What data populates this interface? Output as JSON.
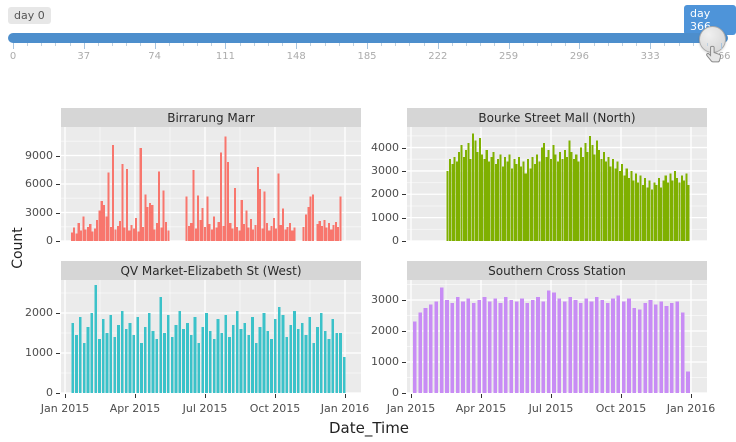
{
  "slider": {
    "left_label": "day 0",
    "right_label": "day 366",
    "tick_labels": [
      "0",
      "37",
      "74",
      "111",
      "148",
      "185",
      "222",
      "259",
      "296",
      "333",
      "366"
    ],
    "track_color": "#4d8ecc",
    "active_badge_color": "#4e94d9",
    "current_value": 366,
    "min": 0,
    "max": 366
  },
  "chart_data": {
    "type": "bar",
    "xlabel": "Date_Time",
    "ylabel": "Count",
    "x_tick_labels": [
      "Jan 2015",
      "Apr 2015",
      "Jul 2015",
      "Oct 2015",
      "Jan 2016"
    ],
    "x_range_days": [
      0,
      366
    ],
    "grid": "on",
    "panels": [
      {
        "title": "Birrarung Marr",
        "color": "#F8766D",
        "ylim": [
          0,
          12000
        ],
        "yticks": [
          0,
          3000,
          6000,
          9000
        ],
        "x_start_day": 9,
        "x_step_days": 3,
        "gap_ratio": 0.1,
        "values": [
          900,
          1400,
          800,
          1900,
          1100,
          2600,
          1200,
          1500,
          1800,
          1000,
          1300,
          2200,
          3200,
          4200,
          3800,
          2600,
          7200,
          1500,
          10100,
          1200,
          1600,
          2100,
          8100,
          1400,
          7600,
          1100,
          1700,
          1300,
          2400,
          1000,
          9800,
          1500,
          4900,
          3600,
          4000,
          3800,
          1200,
          1900,
          7300,
          1400,
          5300,
          2000,
          1100,
          null,
          null,
          null,
          null,
          null,
          null,
          null,
          4700,
          1600,
          1900,
          7500,
          1300,
          4800,
          2200,
          3500,
          1500,
          4700,
          1800,
          1200,
          2600,
          1400,
          2000,
          9300,
          1600,
          11000,
          8300,
          1900,
          1300,
          5600,
          1500,
          1100,
          4300,
          1800,
          3200,
          1400,
          2300,
          1200,
          1700,
          7800,
          5500,
          1300,
          5200,
          1900,
          1100,
          1600,
          2400,
          1300,
          7100,
          1700,
          3400,
          1200,
          1500,
          1900,
          1100,
          1400,
          null,
          null,
          null,
          1500,
          2800,
          3600,
          4700,
          4900,
          null,
          1800,
          2100,
          1600,
          2200,
          1400,
          1900,
          1200,
          1700,
          2000,
          1500,
          4700
        ]
      },
      {
        "title": "Bourke Street Mall (North)",
        "color": "#7FB000",
        "ylim": [
          0,
          4880
        ],
        "yticks": [
          0,
          1000,
          2000,
          3000,
          4000
        ],
        "x_start_day": 48,
        "x_step_days": 3,
        "gap_ratio": 0.12,
        "values": [
          3000,
          3500,
          3300,
          3600,
          3400,
          3800,
          4100,
          3600,
          3900,
          4200,
          3500,
          4600,
          4300,
          3800,
          4400,
          3700,
          3500,
          3900,
          3400,
          3600,
          3800,
          3300,
          3500,
          3700,
          3200,
          3600,
          3400,
          3700,
          3100,
          3500,
          3300,
          3600,
          3200,
          3400,
          2900,
          3500,
          3100,
          3600,
          3300,
          3700,
          3400,
          4000,
          4200,
          3600,
          3900,
          3500,
          4100,
          3700,
          3400,
          3800,
          3500,
          3900,
          3600,
          4300,
          3800,
          3500,
          3700,
          3400,
          4000,
          3600,
          4200,
          3800,
          4500,
          4100,
          3700,
          4300,
          3900,
          3500,
          3800,
          3400,
          3600,
          3200,
          3500,
          3100,
          3400,
          3000,
          3300,
          2800,
          3100,
          2700,
          3000,
          2600,
          2900,
          2500,
          2800,
          2400,
          2700,
          2300,
          2600,
          2200,
          2500,
          2400,
          2700,
          2300,
          2600,
          2800,
          2500,
          2900,
          2600,
          3000,
          2700,
          2500,
          2800,
          2600,
          2900,
          2400
        ]
      },
      {
        "title": "QV Market-Elizabeth St (West)",
        "color": "#3BC2C9",
        "ylim": [
          0,
          2825
        ],
        "yticks": [
          0,
          1000,
          2000
        ],
        "x_start_day": 10,
        "x_step_days": 5,
        "gap_ratio": 0.3,
        "values": [
          1750,
          1450,
          1900,
          1250,
          1650,
          2000,
          2700,
          1350,
          1850,
          1500,
          1950,
          1400,
          1700,
          2050,
          1600,
          1750,
          1450,
          1900,
          1250,
          1650,
          2000,
          1550,
          1350,
          2400,
          1500,
          1950,
          1400,
          1700,
          2050,
          1600,
          1750,
          1450,
          1900,
          1250,
          1650,
          2000,
          1550,
          1350,
          1850,
          1500,
          1950,
          1400,
          1700,
          2050,
          1600,
          1750,
          1450,
          1900,
          1250,
          1650,
          2000,
          1550,
          1350,
          1850,
          2150,
          1950,
          1400,
          1700,
          2050,
          1600,
          1750,
          1450,
          1900,
          1250,
          1650,
          2000,
          1550,
          1350,
          1850,
          1500,
          1500,
          900
        ]
      },
      {
        "title": "Southern Cross Station",
        "color": "#C88CF5",
        "ylim": [
          0,
          3645
        ],
        "yticks": [
          0,
          1000,
          2000,
          3000
        ],
        "x_start_day": 5,
        "x_step_days": 7,
        "gap_ratio": 0.32,
        "values": [
          2300,
          2600,
          2750,
          2850,
          2950,
          3400,
          3000,
          2900,
          3100,
          2950,
          3050,
          2900,
          3000,
          3100,
          2950,
          3050,
          2900,
          3100,
          3000,
          2950,
          3050,
          2900,
          3000,
          3100,
          2950,
          3300,
          3250,
          3050,
          2950,
          3100,
          3000,
          2900,
          3050,
          2950,
          3100,
          3000,
          2900,
          3050,
          3150,
          2950,
          3050,
          2750,
          2700,
          2900,
          3000,
          2850,
          2950,
          2800,
          2900,
          2950,
          2600,
          700
        ]
      }
    ]
  }
}
